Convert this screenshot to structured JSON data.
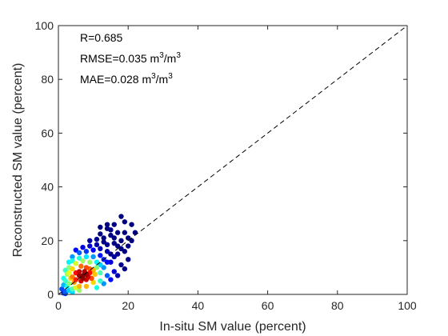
{
  "chart_data": {
    "type": "scatter",
    "xlabel": "In-situ SM value (percent)",
    "ylabel": "Reconstructed SM value (percent)",
    "xlim": [
      0,
      100
    ],
    "ylim": [
      0,
      100
    ],
    "x_ticks": [
      "0",
      "20",
      "40",
      "60",
      "80",
      "100"
    ],
    "y_ticks": [
      "0",
      "20",
      "40",
      "60",
      "80",
      "100"
    ],
    "grid": false,
    "colormap": "jet (point density)",
    "reference_line": {
      "style": "dashed",
      "from": [
        0,
        0
      ],
      "to": [
        100,
        100
      ],
      "color": "#000000"
    },
    "annotations": [
      {
        "parts": [
          {
            "text": "R=0.685"
          }
        ]
      },
      {
        "parts": [
          {
            "text": "RMSE=0.035 m"
          },
          {
            "text": "3",
            "sup": true
          },
          {
            "text": "/m"
          },
          {
            "text": "3",
            "sup": true
          }
        ]
      },
      {
        "parts": [
          {
            "text": "MAE=0.028 m"
          },
          {
            "text": "3",
            "sup": true
          },
          {
            "text": "/m"
          },
          {
            "text": "3",
            "sup": true
          }
        ]
      }
    ],
    "density_core": {
      "x": 7,
      "y": 7
    },
    "points": [
      [
        1.5,
        0.5
      ],
      [
        2,
        1
      ],
      [
        3,
        1.5
      ],
      [
        2.5,
        3
      ],
      [
        4,
        2
      ],
      [
        5,
        2.5
      ],
      [
        3,
        4
      ],
      [
        4.5,
        4.5
      ],
      [
        6,
        3
      ],
      [
        5,
        5.5
      ],
      [
        6.5,
        5
      ],
      [
        7,
        6
      ],
      [
        8,
        5.5
      ],
      [
        6,
        7
      ],
      [
        7,
        7
      ],
      [
        8,
        7.5
      ],
      [
        7.5,
        8.5
      ],
      [
        9,
        8
      ],
      [
        8.5,
        6.5
      ],
      [
        6,
        8.5
      ],
      [
        5,
        8
      ],
      [
        4,
        6.5
      ],
      [
        3.5,
        6
      ],
      [
        9,
        9.5
      ],
      [
        10,
        9
      ],
      [
        10.5,
        7.5
      ],
      [
        9.5,
        6
      ],
      [
        11,
        10
      ],
      [
        8,
        10
      ],
      [
        6.5,
        10.5
      ],
      [
        4,
        9.5
      ],
      [
        3,
        8
      ],
      [
        2,
        5
      ],
      [
        1.5,
        3.5
      ],
      [
        1,
        2
      ],
      [
        12,
        8
      ],
      [
        12,
        11
      ],
      [
        11,
        12
      ],
      [
        9,
        12
      ],
      [
        7,
        12.5
      ],
      [
        5,
        11.5
      ],
      [
        3,
        10
      ],
      [
        2.5,
        7.5
      ],
      [
        13,
        10
      ],
      [
        13,
        13
      ],
      [
        14,
        12
      ],
      [
        12,
        14.5
      ],
      [
        10,
        14
      ],
      [
        8,
        14
      ],
      [
        6,
        13.5
      ],
      [
        4,
        12.5
      ],
      [
        2,
        9
      ],
      [
        1.5,
        6
      ],
      [
        15,
        12
      ],
      [
        15,
        15
      ],
      [
        16,
        14
      ],
      [
        14,
        16
      ],
      [
        12,
        17
      ],
      [
        10,
        16.5
      ],
      [
        8,
        16
      ],
      [
        6,
        15.5
      ],
      [
        4,
        14
      ],
      [
        3,
        12
      ],
      [
        17,
        15
      ],
      [
        17,
        18
      ],
      [
        16,
        19
      ],
      [
        14,
        18.5
      ],
      [
        13,
        19.5
      ],
      [
        11,
        18.5
      ],
      [
        9,
        18
      ],
      [
        7,
        17.5
      ],
      [
        5,
        16.5
      ],
      [
        18,
        17
      ],
      [
        19,
        16
      ],
      [
        18,
        20
      ],
      [
        16,
        21
      ],
      [
        15,
        22
      ],
      [
        13,
        21
      ],
      [
        11,
        20.5
      ],
      [
        9,
        20
      ],
      [
        20,
        18
      ],
      [
        20,
        21
      ],
      [
        19,
        23
      ],
      [
        17,
        23
      ],
      [
        15,
        24
      ],
      [
        14,
        24.5
      ],
      [
        12,
        22.5
      ],
      [
        21,
        20
      ],
      [
        21,
        26
      ],
      [
        19,
        27
      ],
      [
        18,
        29
      ],
      [
        16,
        26
      ],
      [
        14,
        26
      ],
      [
        12,
        25
      ],
      [
        22,
        23
      ],
      [
        2,
        0.3
      ],
      [
        4,
        0.8
      ],
      [
        6,
        1.5
      ],
      [
        8,
        3
      ],
      [
        10,
        4.5
      ],
      [
        12,
        5
      ],
      [
        14,
        7
      ],
      [
        16,
        8.5
      ],
      [
        18,
        11
      ],
      [
        20,
        13
      ],
      [
        11,
        2.5
      ],
      [
        13,
        4
      ],
      [
        15,
        5.5
      ],
      [
        17,
        7
      ],
      [
        19,
        9.5
      ]
    ]
  }
}
